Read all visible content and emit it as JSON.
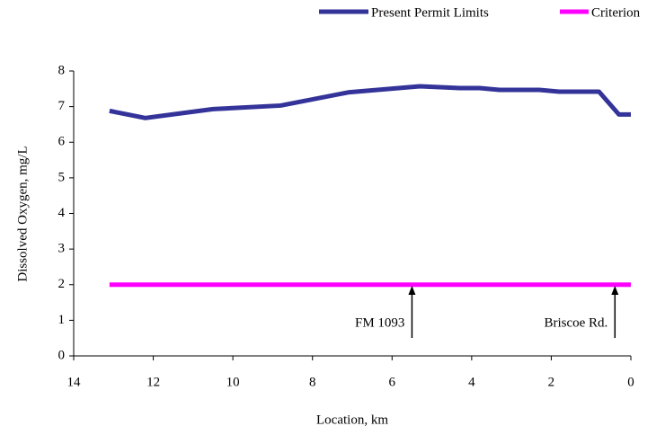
{
  "chart_data": {
    "type": "line",
    "x_label": "Location, km",
    "y_label": "Dissolved Oxygen, mg/L",
    "xlim": [
      14,
      0
    ],
    "xticks": [
      14,
      12,
      10,
      8,
      6,
      4,
      2,
      0
    ],
    "ylim": [
      0,
      8
    ],
    "yticks": [
      0,
      1,
      2,
      3,
      4,
      5,
      6,
      7,
      8
    ],
    "series": [
      {
        "name": "Present Permit Limits",
        "color": "#333399",
        "x": [
          13.1,
          12.2,
          10.5,
          8.8,
          7.1,
          5.3,
          4.3,
          3.8,
          3.3,
          2.3,
          1.8,
          0.8,
          0.3,
          0
        ],
        "values": [
          6.88,
          6.68,
          6.93,
          7.03,
          7.4,
          7.57,
          7.52,
          7.52,
          7.47,
          7.47,
          7.42,
          7.42,
          6.78,
          6.78
        ]
      },
      {
        "name": "Criterion",
        "color": "#ff00ff",
        "x": [
          13.1,
          0
        ],
        "values": [
          2,
          2
        ]
      }
    ],
    "annotations": [
      {
        "text": "FM 1093",
        "x": 5.5
      },
      {
        "text": "Briscoe Rd.",
        "x": 0.4
      }
    ],
    "legend": "top-right"
  }
}
